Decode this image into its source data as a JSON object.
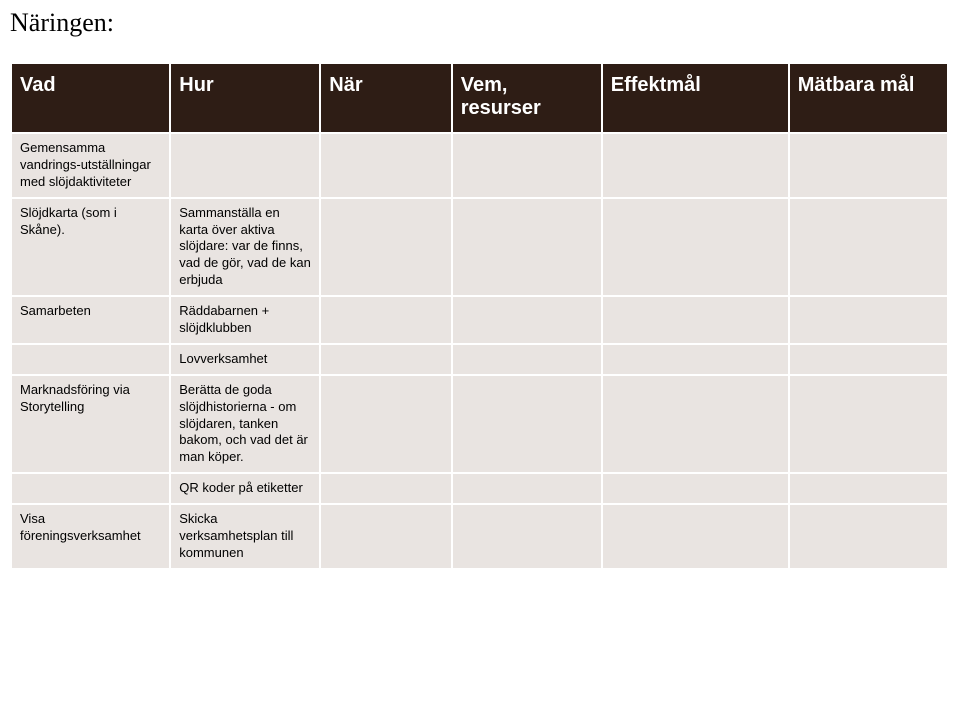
{
  "title": "Näringen:",
  "table": {
    "type": "table",
    "background_color": "#ffffff",
    "header_bg": "#2e1d15",
    "header_color": "#ffffff",
    "cell_bg": "#e9e4e1",
    "cell_color": "#000000",
    "header_fontsize": 20,
    "cell_fontsize": 13,
    "columns": [
      {
        "key": "vad",
        "label": "Vad",
        "width": "17%"
      },
      {
        "key": "hur",
        "label": "Hur",
        "width": "16%"
      },
      {
        "key": "nar",
        "label": "När",
        "width": "14%"
      },
      {
        "key": "vem",
        "label": "Vem, resurser",
        "width": "16%"
      },
      {
        "key": "eff",
        "label": "Effektmål",
        "width": "20%"
      },
      {
        "key": "mat",
        "label": "Mätbara mål",
        "width": "17%"
      }
    ],
    "rows": [
      {
        "vad": "Gemensamma vandrings-utställningar med slöjdaktiviteter",
        "hur": "",
        "nar": "",
        "vem": "",
        "eff": "",
        "mat": ""
      },
      {
        "vad": "Slöjdkarta (som i Skåne).",
        "hur": "Sammanställa en karta över aktiva slöjdare: var de finns, vad de gör, vad de kan erbjuda",
        "nar": "",
        "vem": "",
        "eff": "",
        "mat": ""
      },
      {
        "vad": "Samarbeten",
        "hur": "Räddabarnen + slöjdklubben",
        "nar": "",
        "vem": "",
        "eff": "",
        "mat": ""
      },
      {
        "vad": "",
        "hur": "Lovverksamhet",
        "nar": "",
        "vem": "",
        "eff": "",
        "mat": ""
      },
      {
        "vad": "Marknadsföring via Storytelling",
        "hur": "Berätta de goda slöjdhistorierna - om slöjdaren, tanken bakom, och vad det är man köper.",
        "nar": "",
        "vem": "",
        "eff": "",
        "mat": ""
      },
      {
        "vad": "",
        "hur": "QR koder på etiketter",
        "nar": "",
        "vem": "",
        "eff": "",
        "mat": ""
      },
      {
        "vad": "Visa föreningsverksamhet",
        "hur": "Skicka verksamhetsplan till kommunen",
        "nar": "",
        "vem": "",
        "eff": "",
        "mat": ""
      }
    ]
  }
}
